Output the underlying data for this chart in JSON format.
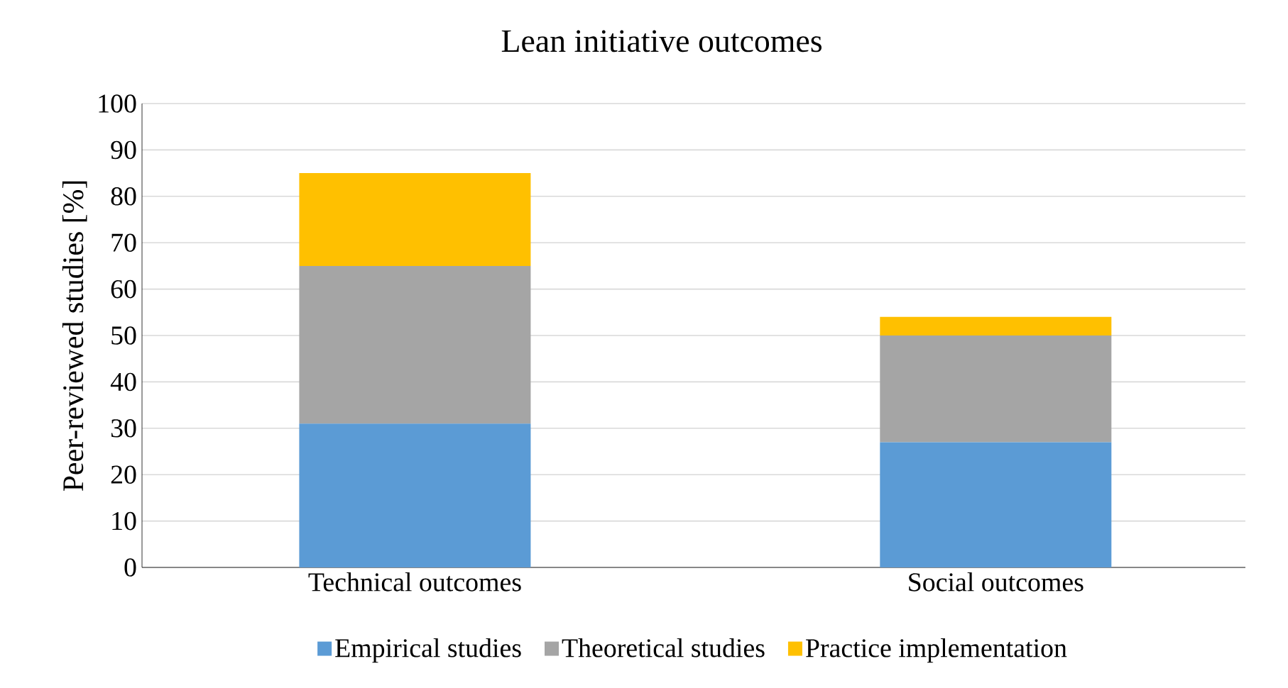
{
  "chart_data": {
    "type": "bar",
    "title": "Lean initiative outcomes",
    "ylabel": "Peer-reviewed studies [%]",
    "categories": [
      "Technical outcomes",
      "Social outcomes"
    ],
    "stacked": true,
    "series": [
      {
        "name": "Empirical studies",
        "color": "#5b9bd5",
        "values": [
          31,
          27
        ]
      },
      {
        "name": "Theoretical studies",
        "color": "#a5a5a5",
        "values": [
          34,
          23
        ]
      },
      {
        "name": "Practice implementation",
        "color": "#ffc000",
        "values": [
          20,
          4
        ]
      }
    ],
    "ylim": [
      0,
      100
    ],
    "yticks": [
      0,
      10,
      20,
      30,
      40,
      50,
      60,
      70,
      80,
      90,
      100
    ],
    "grid": "y",
    "legend": "bottom"
  }
}
